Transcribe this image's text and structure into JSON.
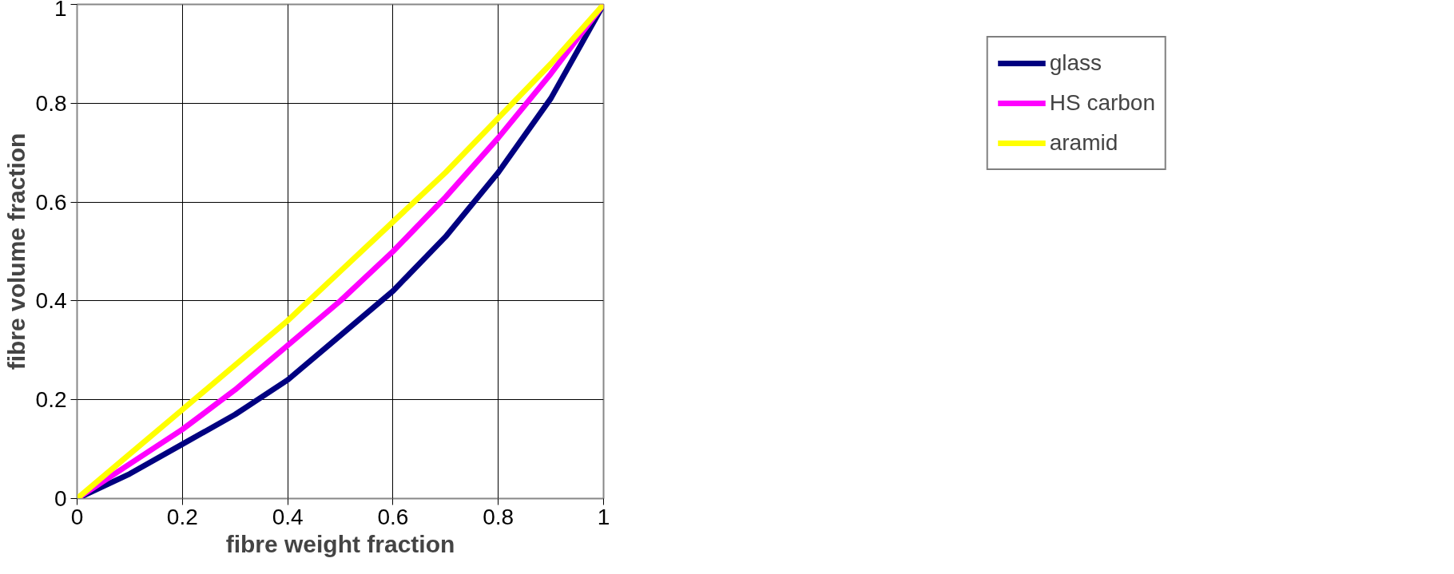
{
  "chart_data": {
    "type": "line",
    "xlabel": "fibre weight fraction",
    "ylabel": "fibre volume fraction",
    "x": [
      0,
      0.1,
      0.2,
      0.3,
      0.4,
      0.5,
      0.6,
      0.7,
      0.8,
      0.9,
      1
    ],
    "series": [
      {
        "name": "glass",
        "color": "#000080",
        "values": [
          0,
          0.05,
          0.11,
          0.17,
          0.24,
          0.33,
          0.42,
          0.53,
          0.66,
          0.81,
          1
        ]
      },
      {
        "name": "HS carbon",
        "color": "#ff00ff",
        "values": [
          0,
          0.07,
          0.14,
          0.22,
          0.31,
          0.4,
          0.5,
          0.61,
          0.73,
          0.86,
          1
        ]
      },
      {
        "name": "aramid",
        "color": "#ffff00",
        "values": [
          0,
          0.09,
          0.18,
          0.27,
          0.36,
          0.46,
          0.56,
          0.66,
          0.77,
          0.88,
          1
        ]
      }
    ],
    "xlim": [
      0,
      1
    ],
    "ylim": [
      0,
      1
    ],
    "xticks": [
      0,
      0.2,
      0.4,
      0.6,
      0.8,
      1
    ],
    "yticks": [
      0,
      0.2,
      0.4,
      0.6,
      0.8,
      1
    ],
    "grid": true,
    "legend": "right",
    "line_style": "solid"
  }
}
